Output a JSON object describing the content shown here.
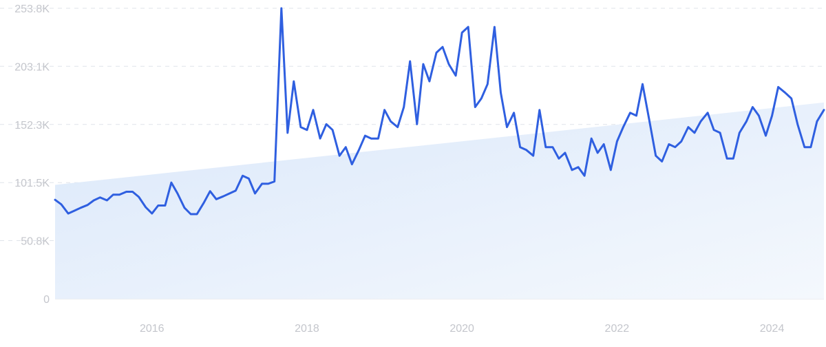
{
  "chart_data": {
    "type": "line",
    "title": "",
    "xlabel": "",
    "ylabel": "",
    "y_ticks": [
      "0",
      "50.8K",
      "101.5K",
      "152.3K",
      "203.1K",
      "253.8K"
    ],
    "y_tick_values": [
      0,
      50800,
      101500,
      152300,
      203100,
      253800
    ],
    "ylim": [
      0,
      253800
    ],
    "x_ticks": [
      "2016",
      "2018",
      "2020",
      "2022",
      "2024"
    ],
    "x_tick_values": [
      2016,
      2018,
      2020,
      2022,
      2024
    ],
    "xlim": [
      2014.75,
      2024.67
    ],
    "grid": true,
    "colors": {
      "line": "#2f5fe0",
      "area_top": "#dbe8fa",
      "area_bottom": "#f4f8fd"
    },
    "trend": {
      "start": [
        2014.75,
        99500
      ],
      "end": [
        2024.67,
        171500
      ]
    },
    "series": [
      {
        "values": [
          [
            2014.75,
            86500
          ],
          [
            2014.83,
            82500
          ],
          [
            2014.92,
            74500
          ],
          [
            2015.0,
            77000
          ],
          [
            2015.08,
            79500
          ],
          [
            2015.17,
            82000
          ],
          [
            2015.25,
            86000
          ],
          [
            2015.33,
            88500
          ],
          [
            2015.42,
            86000
          ],
          [
            2015.5,
            91000
          ],
          [
            2015.58,
            91000
          ],
          [
            2015.67,
            93500
          ],
          [
            2015.75,
            93500
          ],
          [
            2015.83,
            89000
          ],
          [
            2015.92,
            80000
          ],
          [
            2016.0,
            74500
          ],
          [
            2016.08,
            81500
          ],
          [
            2016.17,
            81500
          ],
          [
            2016.25,
            101500
          ],
          [
            2016.33,
            92000
          ],
          [
            2016.42,
            79500
          ],
          [
            2016.5,
            74000
          ],
          [
            2016.58,
            74000
          ],
          [
            2016.67,
            84000
          ],
          [
            2016.75,
            94000
          ],
          [
            2016.83,
            87000
          ],
          [
            2016.92,
            89500
          ],
          [
            2017.0,
            92000
          ],
          [
            2017.08,
            94500
          ],
          [
            2017.17,
            107500
          ],
          [
            2017.25,
            105000
          ],
          [
            2017.33,
            92000
          ],
          [
            2017.42,
            100500
          ],
          [
            2017.5,
            100500
          ],
          [
            2017.58,
            102500
          ],
          [
            2017.67,
            253800
          ],
          [
            2017.75,
            145000
          ],
          [
            2017.83,
            190000
          ],
          [
            2017.92,
            150000
          ],
          [
            2018.0,
            147500
          ],
          [
            2018.08,
            165000
          ],
          [
            2018.17,
            140000
          ],
          [
            2018.25,
            152500
          ],
          [
            2018.33,
            147500
          ],
          [
            2018.42,
            125000
          ],
          [
            2018.5,
            132500
          ],
          [
            2018.58,
            117500
          ],
          [
            2018.67,
            130000
          ],
          [
            2018.75,
            142500
          ],
          [
            2018.83,
            140000
          ],
          [
            2018.92,
            140000
          ],
          [
            2019.0,
            165000
          ],
          [
            2019.08,
            155000
          ],
          [
            2019.17,
            150000
          ],
          [
            2019.25,
            167500
          ],
          [
            2019.33,
            207500
          ],
          [
            2019.42,
            152500
          ],
          [
            2019.5,
            205000
          ],
          [
            2019.58,
            190000
          ],
          [
            2019.67,
            215000
          ],
          [
            2019.75,
            220000
          ],
          [
            2019.83,
            205000
          ],
          [
            2019.92,
            195000
          ],
          [
            2020.0,
            232500
          ],
          [
            2020.08,
            237500
          ],
          [
            2020.17,
            167500
          ],
          [
            2020.25,
            175000
          ],
          [
            2020.33,
            187500
          ],
          [
            2020.42,
            237500
          ],
          [
            2020.5,
            180000
          ],
          [
            2020.58,
            150000
          ],
          [
            2020.67,
            162500
          ],
          [
            2020.75,
            132500
          ],
          [
            2020.83,
            130000
          ],
          [
            2020.92,
            125000
          ],
          [
            2021.0,
            165000
          ],
          [
            2021.08,
            132500
          ],
          [
            2021.17,
            132500
          ],
          [
            2021.25,
            122500
          ],
          [
            2021.33,
            127500
          ],
          [
            2021.42,
            112500
          ],
          [
            2021.5,
            115000
          ],
          [
            2021.58,
            107500
          ],
          [
            2021.67,
            140000
          ],
          [
            2021.75,
            127500
          ],
          [
            2021.83,
            135000
          ],
          [
            2021.92,
            112500
          ],
          [
            2022.0,
            137500
          ],
          [
            2022.08,
            150000
          ],
          [
            2022.17,
            162500
          ],
          [
            2022.25,
            160000
          ],
          [
            2022.33,
            187500
          ],
          [
            2022.42,
            155000
          ],
          [
            2022.5,
            125000
          ],
          [
            2022.58,
            120000
          ],
          [
            2022.67,
            135000
          ],
          [
            2022.75,
            132500
          ],
          [
            2022.83,
            137500
          ],
          [
            2022.92,
            150000
          ],
          [
            2023.0,
            145000
          ],
          [
            2023.08,
            155000
          ],
          [
            2023.17,
            162500
          ],
          [
            2023.25,
            147500
          ],
          [
            2023.33,
            145000
          ],
          [
            2023.42,
            122500
          ],
          [
            2023.5,
            122500
          ],
          [
            2023.58,
            145000
          ],
          [
            2023.67,
            155000
          ],
          [
            2023.75,
            167500
          ],
          [
            2023.83,
            160000
          ],
          [
            2023.92,
            142500
          ],
          [
            2024.0,
            160000
          ],
          [
            2024.08,
            185000
          ],
          [
            2024.17,
            180000
          ],
          [
            2024.25,
            175000
          ],
          [
            2024.33,
            152500
          ],
          [
            2024.42,
            132500
          ],
          [
            2024.5,
            132500
          ],
          [
            2024.58,
            155000
          ],
          [
            2024.67,
            165000
          ]
        ]
      }
    ]
  }
}
